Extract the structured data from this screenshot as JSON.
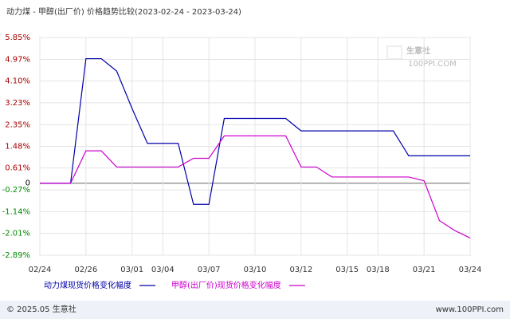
{
  "chart_data": {
    "type": "line",
    "title": "动力煤 - 甲醇(出厂价) 价格趋势比较(2023-02-24 - 2023-03-24)",
    "categories": [
      "02/24",
      null,
      null,
      "02/26",
      null,
      null,
      "03/01",
      null,
      "03/04",
      null,
      null,
      "03/07",
      null,
      null,
      "03/10",
      null,
      null,
      "03/12",
      null,
      null,
      "03/15",
      null,
      "03/18",
      null,
      null,
      "03/21",
      null,
      null,
      "03/24"
    ],
    "series": [
      {
        "name": "动力煤现货价格变化幅度",
        "color": "#0000aa",
        "values": [
          0,
          0,
          0,
          5.0,
          5.0,
          4.5,
          3.0,
          1.6,
          1.6,
          1.6,
          -0.85,
          -0.85,
          2.6,
          2.6,
          2.6,
          2.6,
          2.6,
          2.1,
          2.1,
          2.1,
          2.1,
          2.1,
          2.1,
          2.1,
          1.1,
          1.1,
          1.1,
          1.1,
          1.1
        ]
      },
      {
        "name": "甲醇(出厂价)现货价格变化幅度",
        "color": "#cc00cc",
        "values": [
          0,
          0,
          0,
          1.3,
          1.3,
          0.65,
          0.65,
          0.65,
          0.65,
          0.65,
          1.0,
          1.0,
          1.9,
          1.9,
          1.9,
          1.9,
          1.9,
          0.65,
          0.65,
          0.25,
          0.25,
          0.25,
          0.25,
          0.25,
          0.25,
          0.1,
          -1.5,
          -1.9,
          -2.2
        ]
      }
    ],
    "ylim": [
      -2.89,
      5.85
    ],
    "yticks": [
      {
        "value": 5.85,
        "label": "5.85%"
      },
      {
        "value": 4.97,
        "label": "4.97%"
      },
      {
        "value": 4.1,
        "label": "4.10%"
      },
      {
        "value": 3.23,
        "label": "3.23%"
      },
      {
        "value": 2.35,
        "label": "2.35%"
      },
      {
        "value": 1.48,
        "label": "1.48%"
      },
      {
        "value": 0.61,
        "label": "0.61%"
      },
      0,
      {
        "value": -0.27,
        "label": "-0.27%"
      },
      {
        "value": -1.14,
        "label": "-1.14%"
      },
      {
        "value": -2.01,
        "label": "-2.01%"
      },
      {
        "value": -2.89,
        "label": "-2.89%"
      }
    ],
    "grid": true,
    "watermark": "生意社",
    "watermark_sub": "100PPI.COM",
    "footer_left": "© 2025.05 生意社",
    "footer_right": "www.100PPI.com"
  }
}
